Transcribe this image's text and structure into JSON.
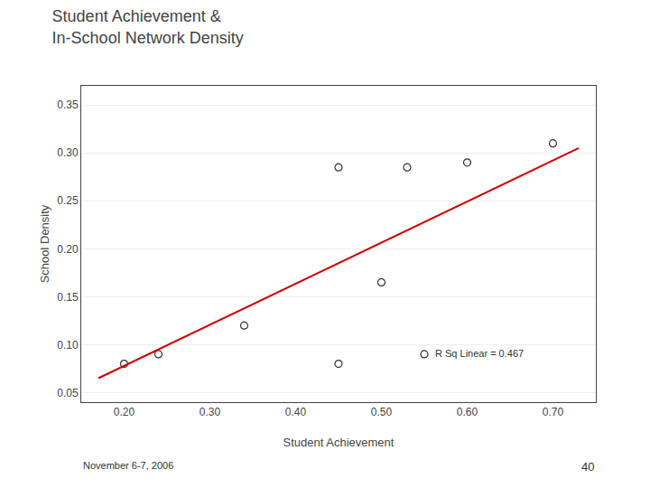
{
  "chart_data": {
    "type": "scatter",
    "title": [
      "Student Achievement &",
      "In-School Network Density"
    ],
    "x_label": "Student Achievement",
    "y_label": "School Density",
    "series": [
      {
        "type": "scatter",
        "marker": "circle-open",
        "color": "#333333",
        "x": [
          0.2,
          0.24,
          0.34,
          0.45,
          0.45,
          0.5,
          0.53,
          0.55,
          0.6,
          0.7
        ],
        "values": [
          0.08,
          0.09,
          0.12,
          0.285,
          0.08,
          0.165,
          0.285,
          0.09,
          0.29,
          0.31
        ]
      },
      {
        "type": "line",
        "line_style": "solid",
        "color": "#cc0000",
        "x": [
          0.17,
          0.73
        ],
        "values": [
          0.065,
          0.305
        ]
      }
    ],
    "annotations": [
      {
        "text": "R Sq Linear = 0.467",
        "x": 0.56,
        "y": 0.083
      },
      {
        "text": "November 6-7, 2006"
      },
      {
        "text": "40"
      }
    ],
    "xlim": [
      0.15,
      0.75
    ],
    "ylim": [
      0.04,
      0.37
    ],
    "xticks": [
      {
        "value": 0.2,
        "label": "0.20"
      },
      {
        "value": 0.3,
        "label": "0.30"
      },
      {
        "value": 0.4,
        "label": "0.40"
      },
      {
        "value": 0.5,
        "label": "0.50"
      },
      {
        "value": 0.6,
        "label": "0.60"
      },
      {
        "value": 0.7,
        "label": "0.70"
      }
    ],
    "yticks": [
      0.05,
      {
        "value": 0.1,
        "label": "0.10"
      },
      0.15,
      {
        "value": 0.2,
        "label": "0.20"
      },
      0.25,
      {
        "value": 0.3,
        "label": "0.30"
      },
      0.35
    ],
    "grid": "y"
  }
}
